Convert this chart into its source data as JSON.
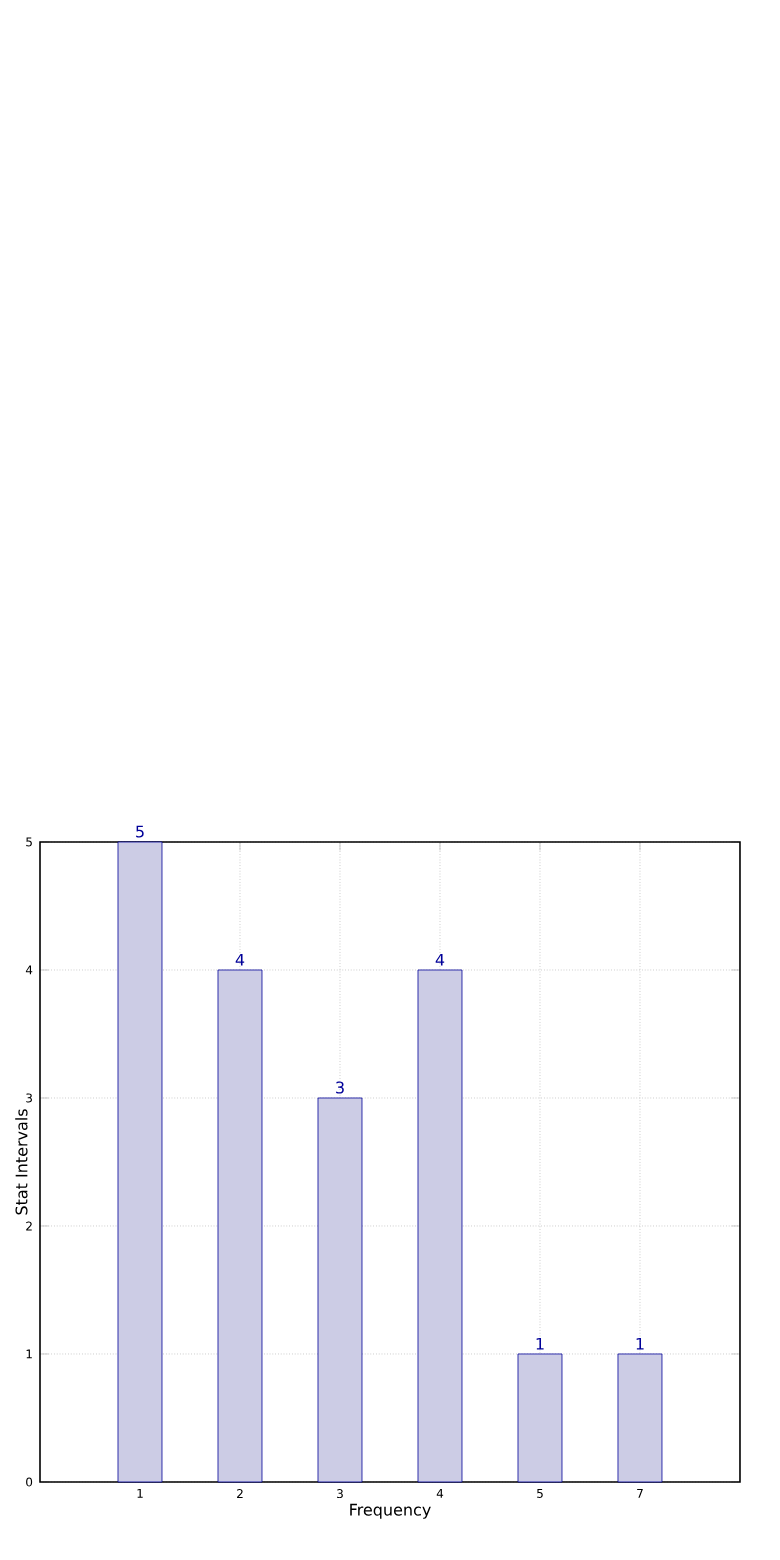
{
  "chart_data": {
    "type": "bar",
    "xlabel": "Frequency",
    "ylabel": "Stat Intervals",
    "categories": [
      "1",
      "2",
      "3",
      "4",
      "5",
      "7"
    ],
    "values": [
      5,
      4,
      3,
      4,
      1,
      1
    ],
    "color": "#cccce5",
    "ylim": [
      0,
      5
    ],
    "yticks": [
      0,
      1,
      2,
      3,
      4,
      5
    ],
    "grid": true,
    "data_labels": true
  }
}
